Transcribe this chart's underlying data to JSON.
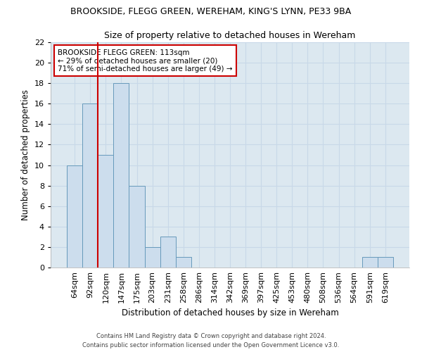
{
  "title1": "BROOKSIDE, FLEGG GREEN, WEREHAM, KING'S LYNN, PE33 9BA",
  "title2": "Size of property relative to detached houses in Wereham",
  "xlabel": "Distribution of detached houses by size in Wereham",
  "ylabel": "Number of detached properties",
  "categories": [
    "64sqm",
    "92sqm",
    "120sqm",
    "147sqm",
    "175sqm",
    "203sqm",
    "231sqm",
    "258sqm",
    "286sqm",
    "314sqm",
    "342sqm",
    "369sqm",
    "397sqm",
    "425sqm",
    "453sqm",
    "480sqm",
    "508sqm",
    "536sqm",
    "564sqm",
    "591sqm",
    "619sqm"
  ],
  "values": [
    10,
    16,
    11,
    18,
    8,
    2,
    3,
    1,
    0,
    0,
    0,
    0,
    0,
    0,
    0,
    0,
    0,
    0,
    0,
    1,
    1
  ],
  "bar_color": "#ccdded",
  "bar_edge_color": "#6699bb",
  "annotation_text": "BROOKSIDE FLEGG GREEN: 113sqm\n← 29% of detached houses are smaller (20)\n71% of semi-detached houses are larger (49) →",
  "annotation_box_color": "#ffffff",
  "annotation_border_color": "#cc0000",
  "footer": "Contains HM Land Registry data © Crown copyright and database right 2024.\nContains public sector information licensed under the Open Government Licence v3.0.",
  "ylim": [
    0,
    22
  ],
  "background_color": "#ffffff",
  "grid_color": "#c8d8e8"
}
